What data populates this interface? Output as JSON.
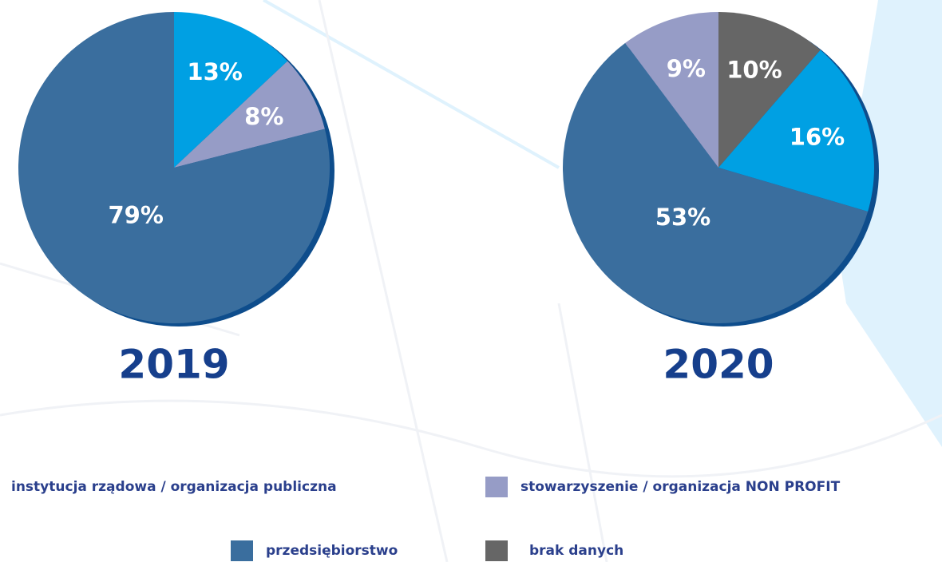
{
  "chart_data": [
    {
      "type": "pie",
      "title": "2019",
      "categories": [
        "instytucja rządowa / organizacja publiczna",
        "stowarzyszenie / organizacja NON PROFIT",
        "przedsiębiorstwo"
      ],
      "values": [
        13,
        8,
        79
      ],
      "value_labels": [
        "13%",
        "8%",
        "79%"
      ],
      "colors": [
        "#00a0e3",
        "#969cc6",
        "#3a6e9e"
      ]
    },
    {
      "type": "pie",
      "title": "2020",
      "categories": [
        "brak danych",
        "instytucja rządowa / organizacja publiczna",
        "przedsiębiorstwo",
        "stowarzyszenie / organizacja NON PROFIT"
      ],
      "values": [
        10,
        16,
        53,
        9
      ],
      "value_labels": [
        "10%",
        "16%",
        "53%",
        "9%"
      ],
      "colors": [
        "#666666",
        "#00a0e3",
        "#3a6e9e",
        "#969cc6"
      ]
    }
  ]
}
